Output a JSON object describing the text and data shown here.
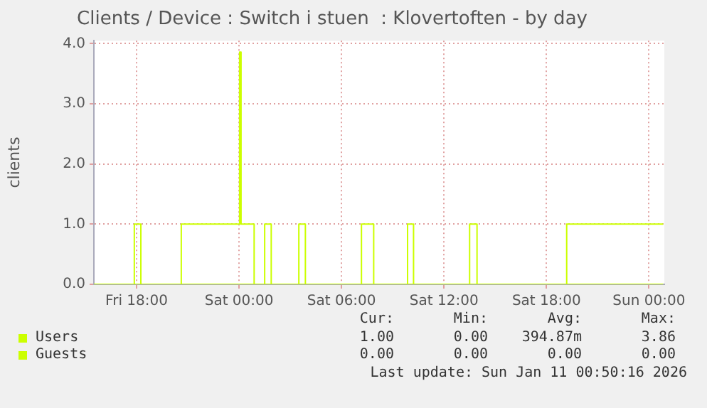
{
  "chart_data": {
    "type": "step",
    "title": "Clients / Device : Switch i stuen  : Klovertoften - by day",
    "ylabel": "clients",
    "xlim": [
      "2026-01-09T15:30",
      "2026-01-11T00:54"
    ],
    "xticks": [
      {
        "value": "2026-01-09T18:00",
        "label": "Fri 18:00"
      },
      {
        "value": "2026-01-10T00:00",
        "label": "Sat 00:00"
      },
      {
        "value": "2026-01-10T06:00",
        "label": "Sat 06:00"
      },
      {
        "value": "2026-01-10T12:00",
        "label": "Sat 12:00"
      },
      {
        "value": "2026-01-10T18:00",
        "label": "Sat 18:00"
      },
      {
        "value": "2026-01-11T00:00",
        "label": "Sun 00:00"
      }
    ],
    "ylim": [
      0,
      4.05
    ],
    "yticks": [
      {
        "value": 0,
        "label": "0.0"
      },
      {
        "value": 1,
        "label": "1.0"
      },
      {
        "value": 2,
        "label": "2.0"
      },
      {
        "value": 3,
        "label": "3.0"
      },
      {
        "value": 4,
        "label": "4.0"
      }
    ],
    "grid": true,
    "legend": "bottom left",
    "series": [
      {
        "name": "Users",
        "color": "#ccff00",
        "x": [
          "2026-01-09T15:30",
          "2026-01-09T17:52",
          "2026-01-09T18:15",
          "2026-01-09T20:37",
          "2026-01-10T00:02",
          "2026-01-10T00:07",
          "2026-01-10T00:53",
          "2026-01-10T01:30",
          "2026-01-10T01:53",
          "2026-01-10T03:30",
          "2026-01-10T03:53",
          "2026-01-10T07:10",
          "2026-01-10T07:53",
          "2026-01-10T09:52",
          "2026-01-10T10:13",
          "2026-01-10T13:30",
          "2026-01-10T13:56",
          "2026-01-10T19:11",
          "2026-01-11T00:50"
        ],
        "values": [
          0,
          1,
          0,
          1,
          3.86,
          1,
          0,
          1,
          0,
          1,
          0,
          1,
          0,
          1,
          0,
          1,
          0,
          1,
          1
        ]
      },
      {
        "name": "Guests",
        "color": "#ccff00",
        "x": [
          "2026-01-09T15:30",
          "2026-01-11T00:50"
        ],
        "values": [
          0,
          0
        ]
      }
    ],
    "annotations": [
      "Cur:",
      "Min:",
      "Avg:",
      "Max:",
      "1.00",
      "0.00",
      "394.87m",
      "3.86",
      "0.00",
      "0.00",
      "0.00",
      "0.00",
      "Last update: Sun Jan 11 00:50:16 2026"
    ]
  }
}
